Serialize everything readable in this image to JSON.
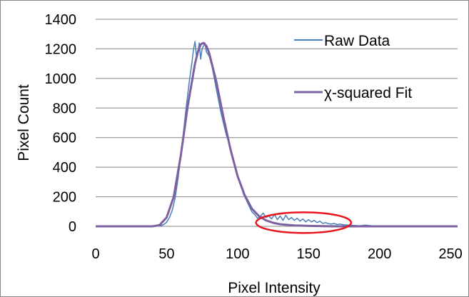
{
  "chart_data": {
    "type": "line",
    "title": "",
    "xlabel": "Pixel Intensity",
    "ylabel": "Pixel Count",
    "xlim": [
      0,
      255
    ],
    "ylim": [
      0,
      1400
    ],
    "xticks": [
      0,
      50,
      100,
      150,
      200,
      250
    ],
    "yticks": [
      0,
      200,
      400,
      600,
      800,
      1000,
      1200,
      1400
    ],
    "grid": "horizontal",
    "legend_position": "top-right",
    "series": [
      {
        "name": "Raw Data",
        "color": "#4a7ebb",
        "x": [
          0,
          10,
          20,
          30,
          40,
          44,
          46,
          48,
          50,
          52,
          54,
          56,
          58,
          60,
          62,
          64,
          66,
          68,
          69,
          70,
          71,
          72,
          73,
          74,
          75,
          76,
          77,
          78,
          80,
          82,
          84,
          86,
          88,
          90,
          92,
          94,
          96,
          98,
          100,
          102,
          104,
          106,
          108,
          110,
          112,
          114,
          116,
          118,
          120,
          122,
          124,
          126,
          128,
          130,
          132,
          134,
          136,
          138,
          140,
          142,
          144,
          146,
          148,
          150,
          152,
          154,
          156,
          158,
          160,
          162,
          164,
          166,
          168,
          170,
          172,
          175,
          178,
          182,
          186,
          190,
          195,
          200,
          210,
          220,
          230,
          240,
          250,
          255
        ],
        "y": [
          0,
          0,
          0,
          0,
          0,
          2,
          5,
          12,
          28,
          60,
          110,
          190,
          320,
          470,
          650,
          820,
          980,
          1120,
          1200,
          1250,
          1150,
          1180,
          1240,
          1130,
          1200,
          1220,
          1240,
          1180,
          1150,
          1080,
          980,
          880,
          780,
          700,
          620,
          560,
          480,
          420,
          340,
          290,
          220,
          180,
          140,
          100,
          80,
          55,
          65,
          90,
          60,
          70,
          50,
          80,
          45,
          70,
          40,
          75,
          45,
          60,
          40,
          55,
          35,
          50,
          30,
          45,
          30,
          40,
          25,
          35,
          20,
          25,
          18,
          15,
          20,
          12,
          15,
          10,
          8,
          6,
          4,
          8,
          3,
          2,
          1,
          0,
          0,
          0,
          0,
          0
        ]
      },
      {
        "name": "χ-squared Fit",
        "color": "#7d60a0",
        "x": [
          0,
          10,
          20,
          30,
          40,
          45,
          50,
          55,
          60,
          65,
          70,
          72,
          74,
          76,
          78,
          80,
          85,
          90,
          95,
          100,
          105,
          110,
          115,
          120,
          125,
          130,
          140,
          150,
          160,
          170,
          180,
          190,
          200,
          210,
          220,
          230,
          240,
          250,
          255
        ],
        "y": [
          0,
          0,
          0,
          0,
          0,
          8,
          60,
          200,
          480,
          820,
          1100,
          1180,
          1230,
          1240,
          1220,
          1170,
          980,
          740,
          520,
          340,
          210,
          120,
          70,
          40,
          24,
          14,
          6,
          3,
          1,
          0,
          0,
          0,
          0,
          0,
          0,
          0,
          0,
          0,
          0
        ]
      }
    ],
    "annotation": {
      "type": "ellipse",
      "color": "#e8141e",
      "x_range": [
        113,
        180
      ],
      "y_range": [
        -45,
        95
      ]
    }
  }
}
